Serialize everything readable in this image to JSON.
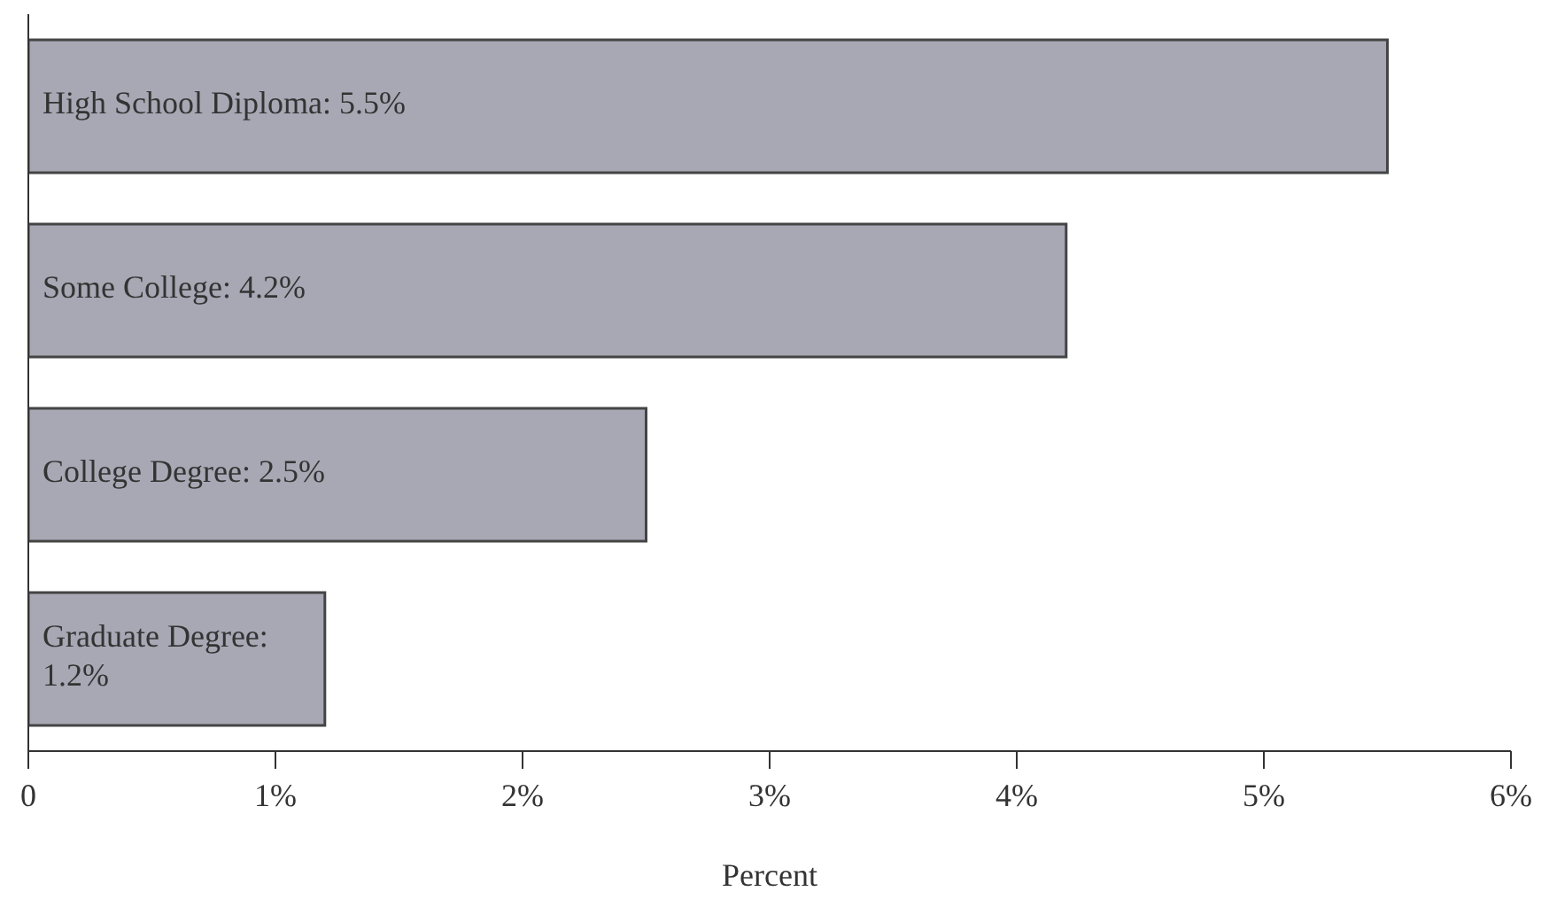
{
  "chart_data": {
    "type": "bar",
    "orientation": "horizontal",
    "categories": [
      null,
      null,
      null,
      null
    ],
    "values": [
      5.5,
      4.2,
      2.5,
      1.2
    ],
    "value_labels": [
      "High School Diploma: 5.5%",
      "Some College: 4.2%",
      "College Degree: 2.5%",
      "Graduate Degree: 1.2%"
    ],
    "color": "#a7a8b4",
    "xlabel": "Percent",
    "xlim": [
      0,
      6
    ],
    "xticks": [
      0,
      {
        "value": 1,
        "label": "1%"
      },
      {
        "value": 2,
        "label": "2%"
      },
      {
        "value": 3,
        "label": "3%"
      },
      {
        "value": 4,
        "label": "4%"
      },
      {
        "value": 5,
        "label": "5%"
      },
      {
        "value": 6,
        "label": "6%"
      }
    ],
    "tick_labels": "x",
    "grid": false,
    "legend": false
  }
}
